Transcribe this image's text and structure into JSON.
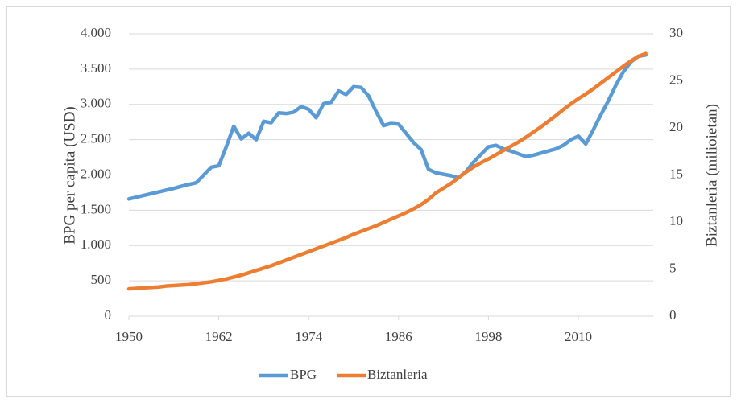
{
  "chart_data": {
    "type": "line",
    "y_label": "BPG per capita (USD)",
    "y2_label": "Biztanleria (milioietan)",
    "x": [
      1950,
      1951,
      1952,
      1953,
      1954,
      1955,
      1956,
      1957,
      1958,
      1959,
      1960,
      1961,
      1962,
      1963,
      1964,
      1965,
      1966,
      1967,
      1968,
      1969,
      1970,
      1971,
      1972,
      1973,
      1974,
      1975,
      1976,
      1977,
      1978,
      1979,
      1980,
      1981,
      1982,
      1983,
      1984,
      1985,
      1986,
      1987,
      1988,
      1989,
      1990,
      1991,
      1992,
      1993,
      1994,
      1995,
      1996,
      1997,
      1998,
      1999,
      2000,
      2001,
      2002,
      2003,
      2004,
      2005,
      2006,
      2007,
      2008,
      2009,
      2010,
      2011,
      2012,
      2013,
      2014,
      2015,
      2016,
      2017,
      2018,
      2019
    ],
    "xlim": [
      1950,
      2020
    ],
    "xticks": [
      1950,
      1962,
      1974,
      1986,
      1998,
      2010
    ],
    "ylim": [
      0,
      4000
    ],
    "yticks": [
      0,
      500,
      {
        "value": 1000,
        "label": "1.000"
      },
      {
        "value": 1500,
        "label": "1.500"
      },
      {
        "value": 2000,
        "label": "2.000"
      },
      {
        "value": 2500,
        "label": "2.500"
      },
      {
        "value": 3000,
        "label": "3.000"
      },
      {
        "value": 3500,
        "label": "3.500"
      },
      {
        "value": 4000,
        "label": "4.000"
      }
    ],
    "y2lim": [
      0,
      30
    ],
    "y2ticks": [
      0,
      5,
      10,
      15,
      20,
      25,
      30
    ],
    "grid": true,
    "legend": "bottom",
    "series": [
      {
        "name": "BPG",
        "color": "#5b9bd5",
        "values": [
          1660,
          1685,
          1710,
          1735,
          1760,
          1785,
          1810,
          1840,
          1865,
          1890,
          2000,
          2110,
          2130,
          2400,
          2690,
          2510,
          2590,
          2500,
          2760,
          2740,
          2880,
          2870,
          2890,
          2970,
          2930,
          2810,
          3010,
          3030,
          3190,
          3140,
          3250,
          3240,
          3120,
          2900,
          2700,
          2730,
          2720,
          2590,
          2460,
          2360,
          2080,
          2030,
          2010,
          1990,
          1960,
          2050,
          2180,
          2290,
          2400,
          2420,
          2370,
          2340,
          2300,
          2260,
          2280,
          2310,
          2340,
          2370,
          2420,
          2500,
          2550,
          2440,
          2640,
          2850,
          3050,
          3270,
          3460,
          3600,
          3680,
          3700
        ]
      },
      {
        "name": "Biztanleria",
        "color": "#ed7d31",
        "axis": "y2",
        "values": [
          2.9,
          2.95,
          3.0,
          3.05,
          3.1,
          3.2,
          3.25,
          3.3,
          3.35,
          3.45,
          3.55,
          3.65,
          3.8,
          3.95,
          4.15,
          4.35,
          4.6,
          4.85,
          5.1,
          5.35,
          5.65,
          5.95,
          6.25,
          6.55,
          6.85,
          7.15,
          7.45,
          7.75,
          8.05,
          8.35,
          8.7,
          9.0,
          9.3,
          9.6,
          9.95,
          10.3,
          10.65,
          11.0,
          11.4,
          11.85,
          12.4,
          13.1,
          13.6,
          14.1,
          14.7,
          15.3,
          15.85,
          16.3,
          16.7,
          17.15,
          17.6,
          18.05,
          18.5,
          19.0,
          19.55,
          20.1,
          20.7,
          21.3,
          21.95,
          22.55,
          23.1,
          23.6,
          24.15,
          24.75,
          25.35,
          25.95,
          26.55,
          27.1,
          27.6,
          27.9
        ]
      }
    ]
  }
}
